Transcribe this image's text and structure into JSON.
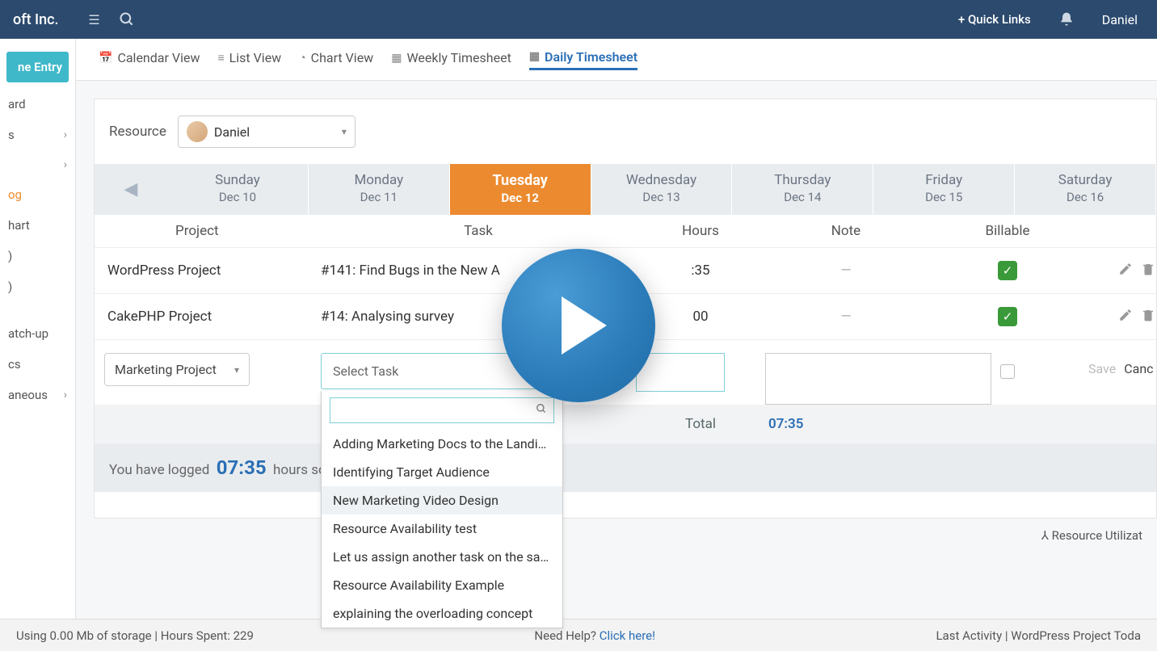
{
  "topbar": {
    "brand": "oft Inc.",
    "quick_links": "+ Quick Links",
    "username": "Daniel"
  },
  "sidebar": {
    "primary": "ne Entry",
    "items": [
      {
        "label": "ard",
        "expand": false
      },
      {
        "label": "s",
        "expand": true
      },
      {
        "label": "",
        "expand": true
      },
      {
        "label": "og",
        "active": true
      },
      {
        "label": "hart"
      },
      {
        "label": ")"
      },
      {
        "label": ")"
      },
      {
        "label": ""
      },
      {
        "label": "atch-up"
      },
      {
        "label": "cs"
      },
      {
        "label": "aneous",
        "expand": true
      }
    ]
  },
  "viewtabs": [
    {
      "icon": "📅",
      "label": "Calendar View"
    },
    {
      "icon": "≡",
      "label": "List View"
    },
    {
      "icon": "◔",
      "label": "Chart View"
    },
    {
      "icon": "▦",
      "label": "Weekly Timesheet"
    },
    {
      "icon": "▦",
      "label": "Daily Timesheet",
      "active": true
    }
  ],
  "resource": {
    "label": "Resource",
    "name": "Daniel"
  },
  "days": [
    {
      "dow": "Sunday",
      "date": "Dec 10"
    },
    {
      "dow": "Monday",
      "date": "Dec 11"
    },
    {
      "dow": "Tuesday",
      "date": "Dec 12",
      "active": true
    },
    {
      "dow": "Wednesday",
      "date": "Dec 13"
    },
    {
      "dow": "Thursday",
      "date": "Dec 14"
    },
    {
      "dow": "Friday",
      "date": "Dec 15"
    },
    {
      "dow": "Saturday",
      "date": "Dec 16"
    }
  ],
  "columns": {
    "project": "Project",
    "task": "Task",
    "hours": "Hours",
    "note": "Note",
    "billable": "Billable"
  },
  "rows": [
    {
      "project": "WordPress Project",
      "task": "#141: Find Bugs in the New A",
      "hours": ":35",
      "billable": true
    },
    {
      "project": "CakePHP Project",
      "task": "#14: Analysing survey",
      "hours": "00",
      "billable": true
    }
  ],
  "entry": {
    "project": "Marketing Project",
    "task_placeholder": "Select Task",
    "save": "Save",
    "cancel": "Canc"
  },
  "task_options": [
    "Adding Marketing Docs to the Landing P",
    "Identifying Target Audience",
    "New Marketing Video Design",
    "Resource Availability test",
    "Let us assign another task on the same",
    "Resource Availability Example",
    "explaining the overloading concept"
  ],
  "hover_index": 2,
  "totals": {
    "label": "Total",
    "value": "07:35"
  },
  "logged": {
    "prefix": "You have logged",
    "hours": "07:35",
    "suffix": "hours so far"
  },
  "footer_util": "⅄ Resource Utilizat",
  "status": {
    "left": "Using 0.00 Mb of storage | Hours Spent: 229",
    "mid": "Need Help? ",
    "mid_link": "Click here!",
    "right": "Last Activity | WordPress Project Toda"
  }
}
